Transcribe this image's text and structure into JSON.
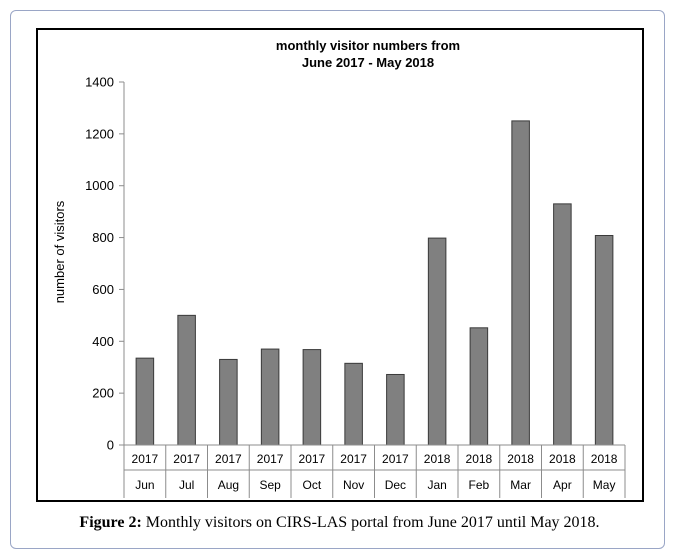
{
  "caption": {
    "label": "Figure 2:",
    "text": " Monthly visitors on CIRS-LAS portal from June 2017 until May 2018."
  },
  "colors": {
    "bar_fill": "#808080",
    "bar_stroke": "#3a3a3a",
    "axis": "#8c8c8c",
    "frame_border": "#9aa6c6"
  },
  "chart_data": {
    "type": "bar",
    "title": [
      "monthly visitor numbers from",
      "June 2017 - May 2018"
    ],
    "ylabel": "number of visitors",
    "xlabel": "",
    "ylim": [
      0,
      1400
    ],
    "yticks": [
      0,
      200,
      400,
      600,
      800,
      1000,
      1200,
      1400
    ],
    "grid": false,
    "legend": "none",
    "categories": [
      {
        "year": "2017",
        "month": "Jun"
      },
      {
        "year": "2017",
        "month": "Jul"
      },
      {
        "year": "2017",
        "month": "Aug"
      },
      {
        "year": "2017",
        "month": "Sep"
      },
      {
        "year": "2017",
        "month": "Oct"
      },
      {
        "year": "2017",
        "month": "Nov"
      },
      {
        "year": "2017",
        "month": "Dec"
      },
      {
        "year": "2018",
        "month": "Jan"
      },
      {
        "year": "2018",
        "month": "Feb"
      },
      {
        "year": "2018",
        "month": "Mar"
      },
      {
        "year": "2018",
        "month": "Apr"
      },
      {
        "year": "2018",
        "month": "May"
      }
    ],
    "values": [
      335,
      500,
      330,
      370,
      368,
      315,
      272,
      798,
      452,
      1250,
      930,
      808
    ]
  }
}
